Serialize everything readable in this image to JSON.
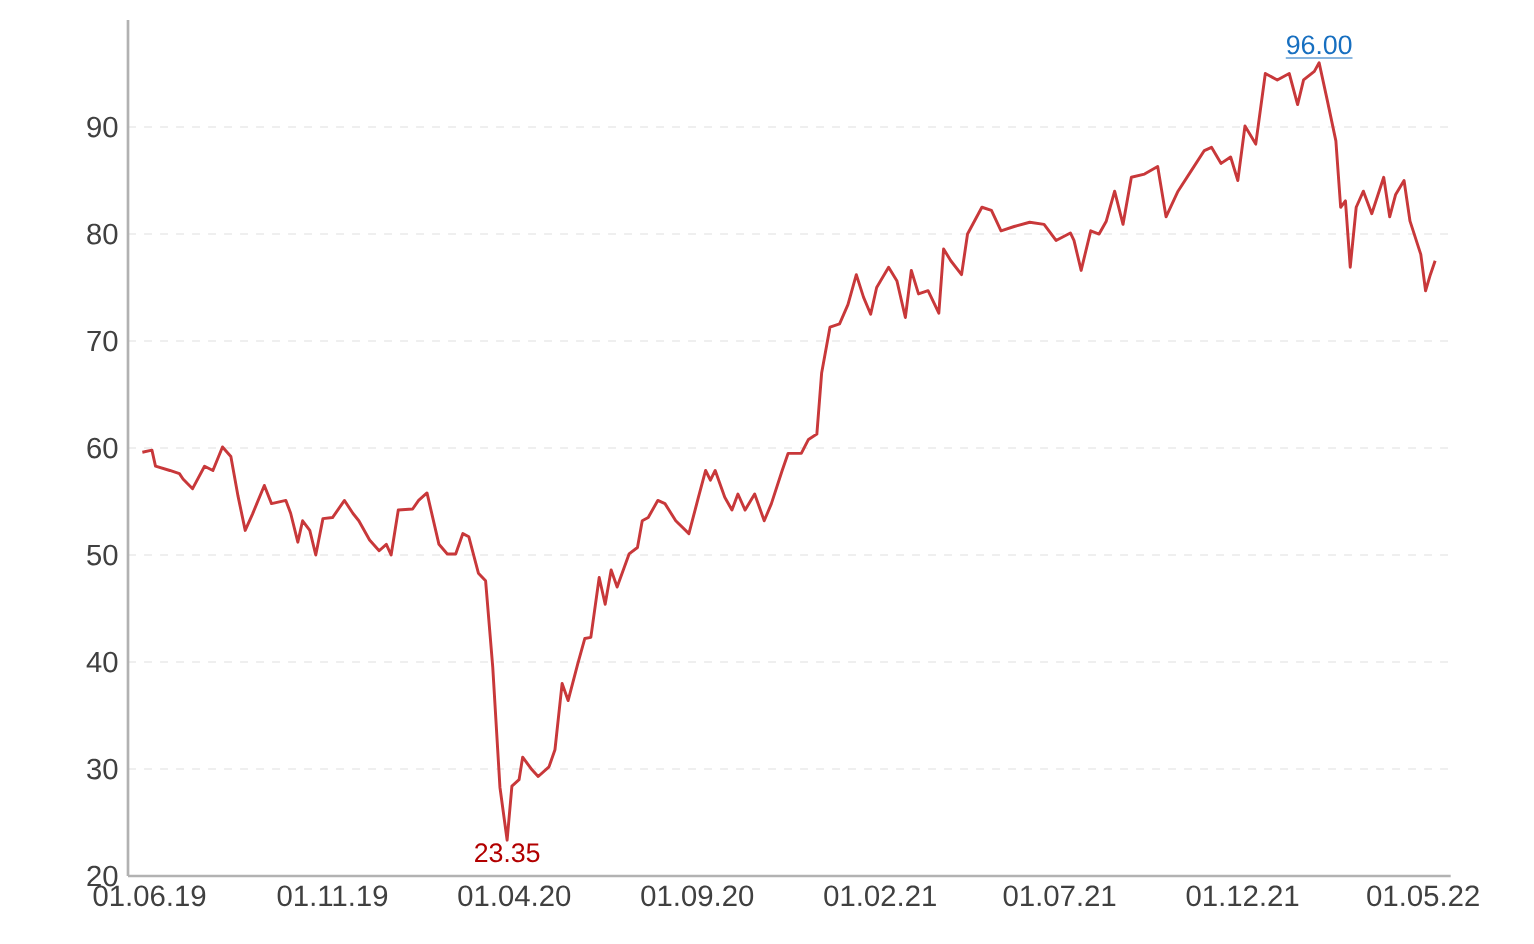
{
  "chart_data": {
    "type": "line",
    "x": [
      "2019-05-26",
      "2019-06-03",
      "2019-06-06",
      "2019-06-18",
      "2019-06-26",
      "2019-06-29",
      "2019-07-07",
      "2019-07-17",
      "2019-07-24",
      "2019-08-01",
      "2019-08-08",
      "2019-08-14",
      "2019-08-20",
      "2019-08-26",
      "2019-09-05",
      "2019-09-11",
      "2019-09-23",
      "2019-09-27",
      "2019-10-03",
      "2019-10-07",
      "2019-10-13",
      "2019-10-18",
      "2019-10-24",
      "2019-11-01",
      "2019-11-11",
      "2019-11-18",
      "2019-11-23",
      "2019-12-02",
      "2019-12-10",
      "2019-12-16",
      "2019-12-20",
      "2019-12-26",
      "2020-01-07",
      "2020-01-12",
      "2020-01-19",
      "2020-01-29",
      "2020-02-05",
      "2020-02-12",
      "2020-02-18",
      "2020-02-23",
      "2020-03-02",
      "2020-03-08",
      "2020-03-14",
      "2020-03-20",
      "2020-03-26",
      "2020-03-30",
      "2020-04-05",
      "2020-04-08",
      "2020-04-16",
      "2020-04-21",
      "2020-04-30",
      "2020-05-05",
      "2020-05-11",
      "2020-05-16",
      "2020-05-24",
      "2020-05-30",
      "2020-06-04",
      "2020-06-11",
      "2020-06-16",
      "2020-06-21",
      "2020-06-26",
      "2020-07-06",
      "2020-07-13",
      "2020-07-17",
      "2020-07-22",
      "2020-07-30",
      "2020-08-05",
      "2020-08-14",
      "2020-08-25",
      "2020-09-02",
      "2020-09-08",
      "2020-09-12",
      "2020-09-16",
      "2020-09-24",
      "2020-09-30",
      "2020-10-05",
      "2020-10-11",
      "2020-10-19",
      "2020-10-27",
      "2020-11-02",
      "2020-11-11",
      "2020-11-16",
      "2020-11-27",
      "2020-12-03",
      "2020-12-10",
      "2020-12-14",
      "2020-12-21",
      "2020-12-29",
      "2021-01-05",
      "2021-01-12",
      "2021-01-18",
      "2021-01-24",
      "2021-01-29",
      "2021-02-08",
      "2021-02-15",
      "2021-02-22",
      "2021-02-27",
      "2021-03-05",
      "2021-03-13",
      "2021-03-22",
      "2021-03-26",
      "2021-04-01",
      "2021-04-10",
      "2021-04-15",
      "2021-04-27",
      "2021-05-05",
      "2021-05-13",
      "2021-05-24",
      "2021-06-06",
      "2021-06-18",
      "2021-06-28",
      "2021-07-10",
      "2021-07-13",
      "2021-07-19",
      "2021-07-27",
      "2021-08-03",
      "2021-08-09",
      "2021-08-16",
      "2021-08-23",
      "2021-08-30",
      "2021-09-10",
      "2021-09-21",
      "2021-09-28",
      "2021-10-08",
      "2021-10-19",
      "2021-10-30",
      "2021-11-05",
      "2021-11-13",
      "2021-11-21",
      "2021-11-27",
      "2021-12-03",
      "2021-12-12",
      "2021-12-20",
      "2021-12-30",
      "2022-01-09",
      "2022-01-16",
      "2022-01-21",
      "2022-01-30",
      "2022-02-03",
      "2022-02-10",
      "2022-02-17",
      "2022-02-21",
      "2022-02-25",
      "2022-03-01",
      "2022-03-06",
      "2022-03-12",
      "2022-03-19",
      "2022-03-29",
      "2022-04-03",
      "2022-04-08",
      "2022-04-15",
      "2022-04-20",
      "2022-04-29",
      "2022-05-03",
      "2022-05-07",
      "2022-05-11"
    ],
    "series": [
      {
        "color": "#c8383a",
        "values": [
          59.6,
          59.8,
          58.3,
          57.9,
          57.6,
          57.1,
          56.2,
          58.3,
          57.9,
          60.1,
          59.2,
          55.5,
          52.3,
          53.8,
          56.5,
          54.8,
          55.1,
          53.9,
          51.2,
          53.2,
          52.3,
          50.0,
          53.4,
          53.5,
          55.1,
          53.9,
          53.2,
          51.4,
          50.4,
          51.0,
          50.0,
          54.2,
          54.3,
          55.1,
          55.8,
          51.0,
          50.1,
          50.1,
          52.0,
          51.7,
          48.3,
          47.6,
          39.5,
          28.3,
          23.35,
          28.4,
          29.0,
          31.1,
          29.9,
          29.3,
          30.2,
          31.8,
          38.0,
          36.4,
          39.8,
          42.2,
          42.3,
          47.9,
          45.4,
          48.6,
          47.0,
          50.1,
          50.7,
          53.2,
          53.5,
          55.1,
          54.8,
          53.2,
          52.0,
          55.4,
          57.9,
          57.0,
          57.9,
          55.4,
          54.2,
          55.7,
          54.2,
          55.7,
          53.2,
          54.8,
          57.9,
          59.5,
          59.5,
          60.8,
          61.3,
          67.0,
          71.3,
          71.6,
          73.4,
          76.2,
          74.1,
          72.5,
          75.0,
          76.9,
          75.6,
          72.2,
          76.6,
          74.4,
          74.7,
          72.6,
          78.6,
          77.5,
          76.2,
          80.0,
          82.5,
          82.2,
          80.3,
          80.7,
          81.1,
          80.9,
          79.4,
          80.1,
          79.4,
          76.6,
          80.3,
          80.0,
          81.2,
          84.0,
          80.9,
          85.3,
          85.6,
          86.3,
          81.6,
          84.0,
          85.9,
          87.8,
          88.1,
          86.6,
          87.2,
          85.0,
          90.1,
          88.4,
          95.0,
          94.4,
          95.0,
          92.1,
          94.4,
          95.2,
          96.0,
          92.4,
          88.7,
          82.5,
          83.1,
          76.9,
          82.5,
          84.0,
          81.9,
          85.3,
          81.6,
          83.7,
          85.0,
          81.2,
          78.1,
          74.7,
          76.2,
          77.5
        ]
      }
    ],
    "xlim": [
      "2019-05-14",
      "2022-05-24"
    ],
    "xticks": [
      {
        "value": "2019-06-01",
        "label": "01.06.19"
      },
      {
        "value": "2019-11-01",
        "label": "01.11.19"
      },
      {
        "value": "2020-04-01",
        "label": "01.04.20"
      },
      {
        "value": "2020-09-01",
        "label": "01.09.20"
      },
      {
        "value": "2021-02-01",
        "label": "01.02.21"
      },
      {
        "value": "2021-07-01",
        "label": "01.07.21"
      },
      {
        "value": "2021-12-01",
        "label": "01.12.21"
      },
      {
        "value": "2022-05-01",
        "label": "01.05.22"
      }
    ],
    "ylim": [
      20,
      100
    ],
    "yticks": [
      20,
      30,
      40,
      50,
      60,
      70,
      80,
      90
    ],
    "grid": "y",
    "line_style": "solid",
    "annotations": [
      {
        "text": "96.00",
        "x": "2022-02-03",
        "y": 96.0
      },
      {
        "text": "23.35",
        "x": "2020-03-26",
        "y": 23.35
      }
    ]
  }
}
